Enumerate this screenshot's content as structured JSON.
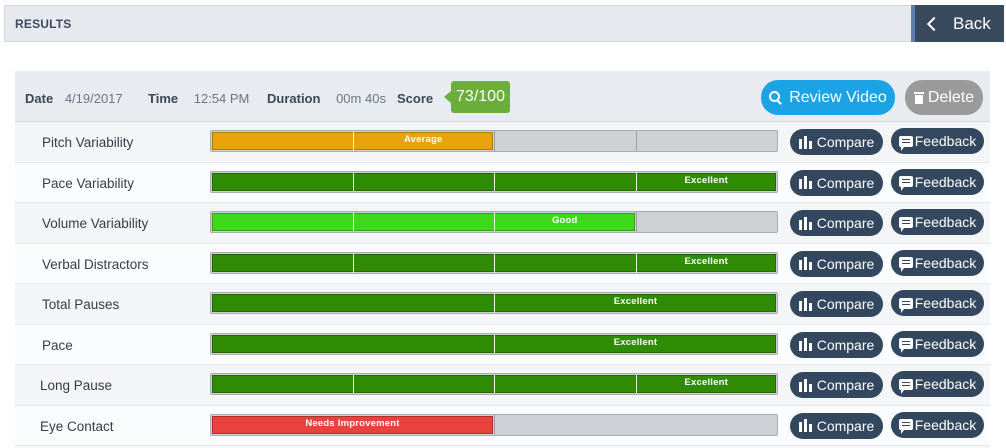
{
  "header": {
    "title": "RESULTS",
    "back_label": "Back"
  },
  "info": {
    "date_label": "Date",
    "date_value": "4/19/2017",
    "time_label": "Time",
    "time_value": "12:54 PM",
    "duration_label": "Duration",
    "duration_value": "00m 40s",
    "score_label": "Score",
    "score_value": "73/100"
  },
  "actions": {
    "review_label": "Review Video",
    "delete_label": "Delete"
  },
  "buttons": {
    "compare_label": "Compare",
    "feedback_label": "Feedback"
  },
  "colors": {
    "average": "#e8a30c",
    "excellent": "#2f8a04",
    "good": "#3fd91c",
    "needs_improvement": "#e8413e",
    "button": "#33475e",
    "accent": "#1ca3e6",
    "score": "#6cae3c"
  },
  "metrics": [
    {
      "label": "Pitch Variability",
      "rating": "Average",
      "segments": 4,
      "filled": 2,
      "color": "average"
    },
    {
      "label": "Pace Variability",
      "rating": "Excellent",
      "segments": 4,
      "filled": 4,
      "color": "excellent"
    },
    {
      "label": "Volume Variability",
      "rating": "Good",
      "segments": 4,
      "filled": 3,
      "color": "good"
    },
    {
      "label": "Verbal Distractors",
      "rating": "Excellent",
      "segments": 4,
      "filled": 4,
      "color": "excellent"
    },
    {
      "label": "Total Pauses",
      "rating": "Excellent",
      "segments": 2,
      "filled": 2,
      "color": "excellent"
    },
    {
      "label": "Pace",
      "rating": "Excellent",
      "segments": 2,
      "filled": 2,
      "color": "excellent"
    },
    {
      "label": "Long Pause",
      "rating": "Excellent",
      "segments": 4,
      "filled": 4,
      "color": "excellent"
    },
    {
      "label": "Eye Contact",
      "rating": "Needs Improvement",
      "segments": 2,
      "filled": 1,
      "color": "needs_improvement"
    }
  ]
}
